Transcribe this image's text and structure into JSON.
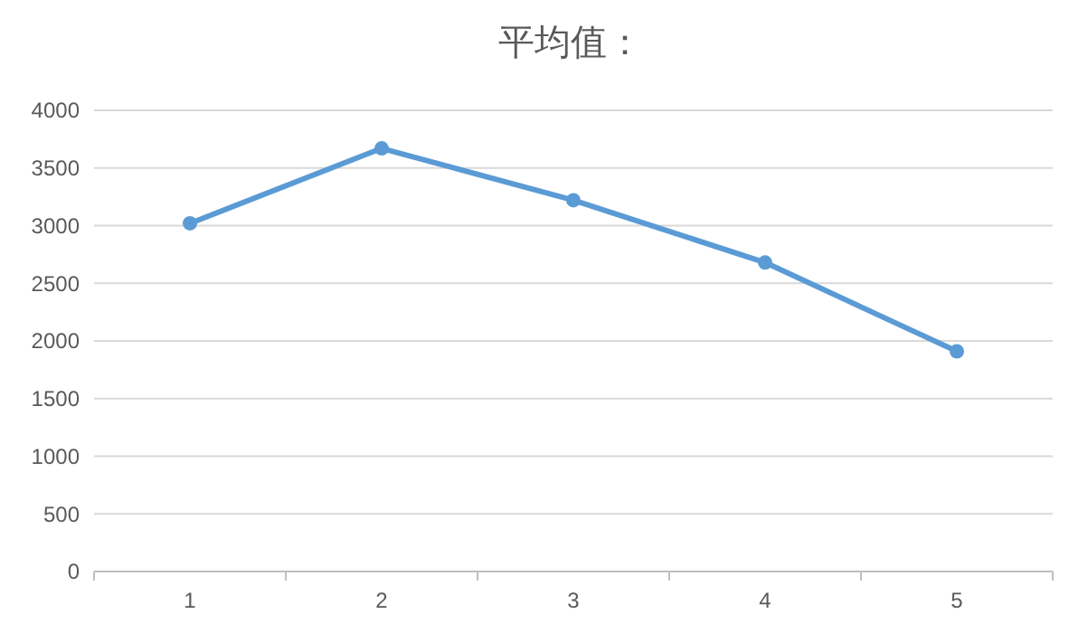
{
  "chart_data": {
    "type": "line",
    "title": "平均值：",
    "categories": [
      "1",
      "2",
      "3",
      "4",
      "5"
    ],
    "series": [
      {
        "color": "#5b9bd5",
        "values": [
          3020,
          3670,
          3220,
          2680,
          1910
        ]
      }
    ],
    "ylim": [
      0,
      4000
    ],
    "yticks": [
      0,
      500,
      1000,
      1500,
      2000,
      2500,
      3000,
      3500,
      4000
    ],
    "grid": "y",
    "marker": "circle",
    "line_style": "solid"
  }
}
